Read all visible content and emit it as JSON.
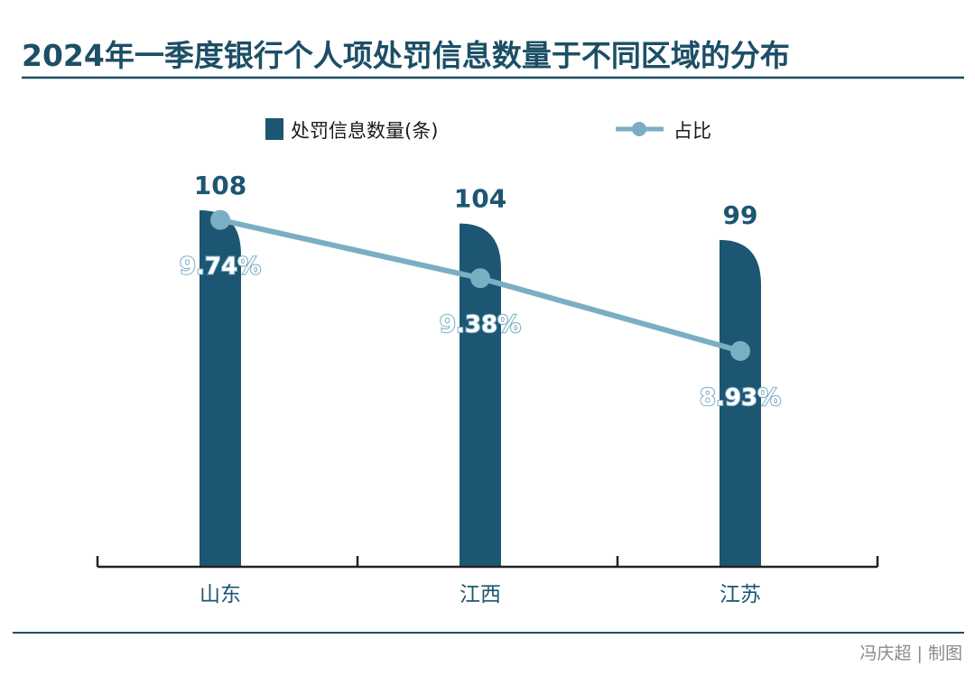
{
  "colors": {
    "bar": "#1c5672",
    "line": "#7aaec3",
    "title": "#1c4f66",
    "axis": "#222222",
    "category": "#1c5672",
    "credit": "#8a8a8a"
  },
  "credit": "冯庆超 | 制图",
  "chart_data": {
    "type": "bar",
    "title": "2024年一季度银行个人项处罚信息数量于不同区域的分布",
    "categories": [
      "山东",
      "江西",
      "江苏"
    ],
    "ylim": [
      0,
      108
    ],
    "series": [
      {
        "name": "处罚信息数量(条)",
        "type": "bar",
        "values": [
          108,
          104,
          99
        ],
        "labels": [
          "108",
          "104",
          "99"
        ]
      },
      {
        "name": "占比",
        "type": "line",
        "values": [
          9.74,
          9.38,
          8.93
        ],
        "labels": [
          "9.74%",
          "9.38%",
          "8.93%"
        ]
      }
    ],
    "legend": "top-center"
  }
}
